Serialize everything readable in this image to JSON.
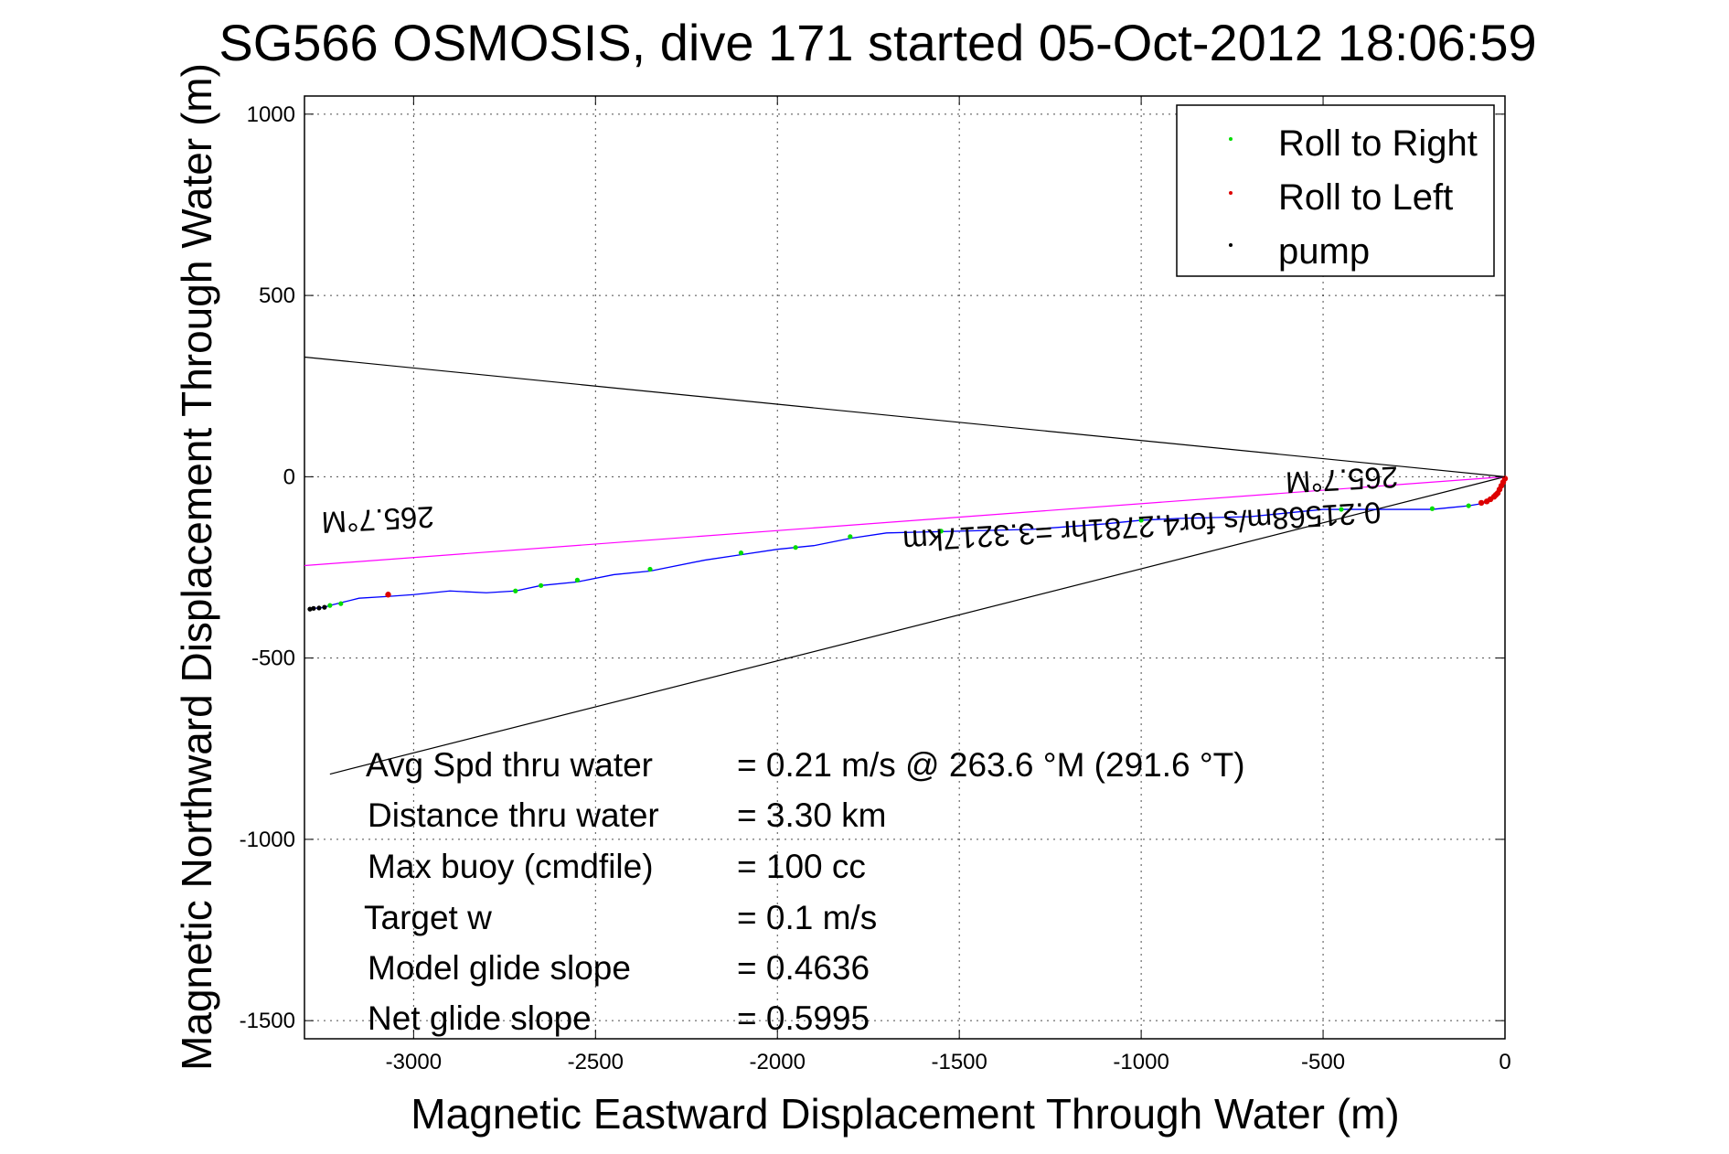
{
  "chart_data": {
    "type": "line",
    "title": "SG566 OSMOSIS, dive 171 started 05-Oct-2012 18:06:59",
    "xlabel": "Magnetic Eastward Displacement Through Water (m)",
    "ylabel": "Magnetic Northward Displacement Through Water (m)",
    "xlim": [
      -3300,
      0
    ],
    "ylim": [
      -1550,
      1050
    ],
    "xticks": [
      -3000,
      -2500,
      -2000,
      -1500,
      -1000,
      -500,
      0
    ],
    "xtick_labels": [
      "-3000",
      "-2500",
      "-2000",
      "-1500",
      "-1000",
      "-500",
      "0"
    ],
    "yticks": [
      1000,
      500,
      0,
      -500,
      -1000,
      -1500
    ],
    "ytick_labels": [
      "1000",
      "500",
      "0",
      "-500",
      "-1000",
      "-1500"
    ],
    "grid": true,
    "legend_position": "top-right",
    "legend": [
      {
        "label": "Roll to Right",
        "color": "#00dd00"
      },
      {
        "label": "Roll to Left",
        "color": "#dd0000"
      },
      {
        "label": "pump",
        "color": "#000000"
      }
    ],
    "track": {
      "color": "#0000ff",
      "x": [
        0,
        -10,
        -20,
        -35,
        -50,
        -70,
        -100,
        -150,
        -200,
        -300,
        -500,
        -700,
        -900,
        -1000,
        -1100,
        -1300,
        -1500,
        -1700,
        -1800,
        -1900,
        -2000,
        -2100,
        -2200,
        -2350,
        -2450,
        -2550,
        -2650,
        -2720,
        -2800,
        -2900,
        -3000,
        -3070,
        -3150,
        -3190,
        -3210,
        -3230,
        -3245,
        -3260,
        -3275,
        -3285
      ],
      "y": [
        0,
        -20,
        -40,
        -55,
        -70,
        -75,
        -80,
        -85,
        -90,
        -90,
        -90,
        -110,
        -115,
        -120,
        -130,
        -145,
        -150,
        -155,
        -170,
        -190,
        -200,
        -215,
        -230,
        -260,
        -270,
        -290,
        -300,
        -315,
        -320,
        -315,
        -325,
        -330,
        -335,
        -345,
        -350,
        -355,
        -360,
        -362,
        -363,
        -365
      ]
    },
    "roll_right_points": {
      "x": [
        -100,
        -200,
        -450,
        -1000,
        -1550,
        -1800,
        -1950,
        -2100,
        -2350,
        -2550,
        -2650,
        -2720,
        -3200,
        -3230
      ],
      "y": [
        -80,
        -88,
        -90,
        -120,
        -150,
        -165,
        -195,
        -210,
        -255,
        -285,
        -300,
        -315,
        -350,
        -355
      ]
    },
    "roll_left_points": {
      "x": [
        0,
        -5,
        -10,
        -15,
        -20,
        -25,
        -30,
        -40,
        -50,
        -65,
        -3070
      ],
      "y": [
        -5,
        -15,
        -25,
        -35,
        -45,
        -50,
        -55,
        -62,
        -68,
        -72,
        -325
      ]
    },
    "pump_points": {
      "x": [
        -3245,
        -3260,
        -3275,
        -3285
      ],
      "y": [
        -360,
        -362,
        -363,
        -365
      ]
    },
    "reference_lines": [
      {
        "color": "#000000",
        "x": [
          0,
          -3300
        ],
        "y": [
          0,
          330
        ]
      },
      {
        "color": "#000000",
        "x": [
          0,
          -3230
        ],
        "y": [
          0,
          -820
        ]
      },
      {
        "color": "#ff00ff",
        "x": [
          0,
          -3300
        ],
        "y": [
          0,
          -245
        ]
      }
    ],
    "annotations": [
      {
        "text": "265.7°M",
        "x": -450,
        "y": 20
      },
      {
        "text": "265.7°M",
        "x": -3100,
        "y": -90
      },
      {
        "text": "0.21568m/s for4.2781hr =3.3217km",
        "x": -1000,
        "y": -110
      }
    ],
    "stats": [
      {
        "label": "Avg Spd thru water",
        "value": "=  0.21 m/s @ 263.6 °M (291.6 °T)"
      },
      {
        "label": "Distance thru water",
        "value": "=  3.30 km"
      },
      {
        "label": "Max buoy (cmdfile)",
        "value": "= 100 cc"
      },
      {
        "label": "Target w",
        "value": "= 0.1 m/s"
      },
      {
        "label": "Model glide slope",
        "value": "= 0.4636"
      },
      {
        "label": "Net glide slope",
        "value": "= 0.5995"
      }
    ]
  }
}
